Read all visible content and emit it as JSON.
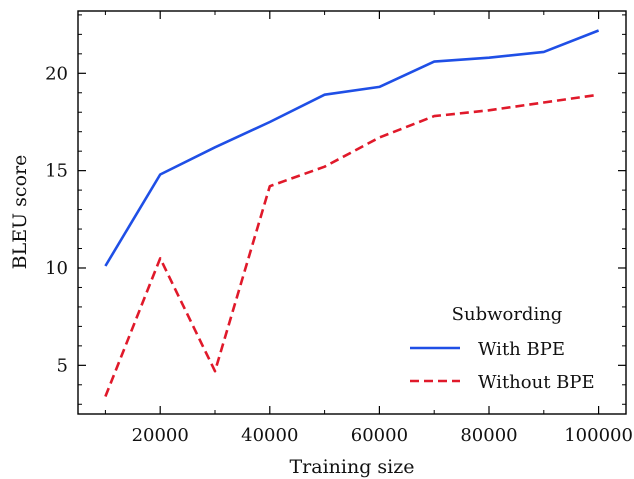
{
  "chart_data": {
    "type": "line",
    "title": "",
    "xlabel": "Training size",
    "ylabel": "BLEU score",
    "x": [
      10000,
      20000,
      30000,
      40000,
      50000,
      60000,
      70000,
      80000,
      90000,
      100000
    ],
    "xlim": [
      5000,
      105000
    ],
    "ylim": [
      2.5,
      23.2
    ],
    "xticks": [
      20000,
      40000,
      60000,
      80000,
      100000
    ],
    "yticks": [
      5,
      10,
      15,
      20
    ],
    "grid": false,
    "legend": {
      "title": "Subwording",
      "placement": "lower-right"
    },
    "series": [
      {
        "name": "With BPE",
        "color": "#1f4fe6",
        "style": "solid",
        "values": [
          10.1,
          14.8,
          16.2,
          17.5,
          18.9,
          19.3,
          20.6,
          20.8,
          21.1,
          22.2
        ]
      },
      {
        "name": "Without BPE",
        "color": "#e0192a",
        "style": "dashed",
        "values": [
          3.4,
          10.5,
          4.7,
          14.2,
          15.2,
          16.7,
          17.8,
          18.1,
          18.5,
          18.9
        ]
      }
    ]
  }
}
